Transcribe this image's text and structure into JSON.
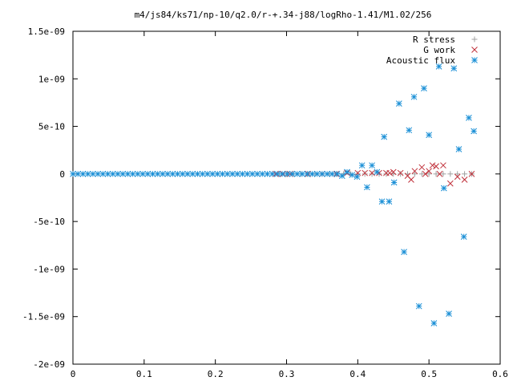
{
  "chart_data": {
    "type": "scatter",
    "title": "m4/js84/ks71/np-10/q2.0/r-+.34-j88/logRho-1.41/M1.02/256",
    "xlabel": "",
    "ylabel": "",
    "xlim": [
      0,
      0.6
    ],
    "ylim": [
      -2e-09,
      1.5e-09
    ],
    "x_ticks": [
      0,
      0.1,
      0.2,
      0.3,
      0.4,
      0.5,
      0.6
    ],
    "x_tick_labels": [
      "0",
      "0.1",
      "0.2",
      "0.3",
      "0.4",
      "0.5",
      "0.6"
    ],
    "y_ticks": [
      1.5e-09,
      1e-09,
      5e-10,
      0,
      -5e-10,
      -1e-09,
      -1.5e-09,
      -2e-09
    ],
    "y_tick_labels": [
      "1.5e-09",
      "1e-09",
      "5e-10",
      "0",
      "-5e-10",
      "-1e-09",
      "-1.5e-09",
      "-2e-09"
    ],
    "grid": false,
    "legend_position": "top-right",
    "series": [
      {
        "name": "R stress",
        "marker": "plus",
        "color": "#a0a0a0",
        "points": [
          [
            0.29,
            0
          ],
          [
            0.3,
            0
          ],
          [
            0.31,
            0
          ],
          [
            0.32,
            0
          ],
          [
            0.33,
            0
          ],
          [
            0.34,
            0
          ],
          [
            0.35,
            0
          ],
          [
            0.36,
            0
          ],
          [
            0.37,
            0
          ],
          [
            0.38,
            0
          ],
          [
            0.39,
            0
          ],
          [
            0.4,
            0
          ],
          [
            0.41,
            0
          ],
          [
            0.42,
            0
          ],
          [
            0.43,
            0
          ],
          [
            0.44,
            0
          ],
          [
            0.45,
            0
          ],
          [
            0.46,
            0
          ],
          [
            0.47,
            0
          ],
          [
            0.48,
            0
          ],
          [
            0.49,
            0
          ],
          [
            0.5,
            0
          ],
          [
            0.51,
            0
          ],
          [
            0.52,
            0
          ],
          [
            0.53,
            0
          ],
          [
            0.54,
            0
          ],
          [
            0.55,
            0
          ],
          [
            0.56,
            0
          ]
        ]
      },
      {
        "name": "G work",
        "marker": "cross",
        "color": "#c0303a",
        "points": [
          [
            0.285,
            0
          ],
          [
            0.295,
            0
          ],
          [
            0.305,
            0
          ],
          [
            0.33,
            0
          ],
          [
            0.35,
            0
          ],
          [
            0.37,
            0
          ],
          [
            0.385,
            1e-11
          ],
          [
            0.4,
            1e-11
          ],
          [
            0.41,
            1e-11
          ],
          [
            0.42,
            1e-11
          ],
          [
            0.43,
            1e-11
          ],
          [
            0.44,
            1e-11
          ],
          [
            0.445,
            1e-11
          ],
          [
            0.45,
            2e-11
          ],
          [
            0.46,
            1e-11
          ],
          [
            0.47,
            -2e-11
          ],
          [
            0.475,
            -6e-11
          ],
          [
            0.48,
            3e-11
          ],
          [
            0.49,
            7e-11
          ],
          [
            0.495,
            0
          ],
          [
            0.5,
            3e-11
          ],
          [
            0.505,
            9e-11
          ],
          [
            0.51,
            8e-11
          ],
          [
            0.515,
            0
          ],
          [
            0.52,
            9e-11
          ],
          [
            0.53,
            -1e-10
          ],
          [
            0.54,
            -3e-11
          ],
          [
            0.55,
            -6e-11
          ],
          [
            0.56,
            0
          ]
        ]
      },
      {
        "name": "Acoustic flux",
        "marker": "star",
        "color": "#1a8fd6",
        "points": [
          [
            0.0,
            0
          ],
          [
            0.007,
            0
          ],
          [
            0.014,
            0
          ],
          [
            0.021,
            0
          ],
          [
            0.028,
            0
          ],
          [
            0.035,
            0
          ],
          [
            0.042,
            0
          ],
          [
            0.049,
            0
          ],
          [
            0.056,
            0
          ],
          [
            0.063,
            0
          ],
          [
            0.07,
            0
          ],
          [
            0.077,
            0
          ],
          [
            0.084,
            0
          ],
          [
            0.091,
            0
          ],
          [
            0.098,
            0
          ],
          [
            0.105,
            0
          ],
          [
            0.112,
            0
          ],
          [
            0.119,
            0
          ],
          [
            0.126,
            0
          ],
          [
            0.133,
            0
          ],
          [
            0.14,
            0
          ],
          [
            0.147,
            0
          ],
          [
            0.154,
            0
          ],
          [
            0.161,
            0
          ],
          [
            0.168,
            0
          ],
          [
            0.175,
            0
          ],
          [
            0.182,
            0
          ],
          [
            0.189,
            0
          ],
          [
            0.196,
            0
          ],
          [
            0.203,
            0
          ],
          [
            0.21,
            0
          ],
          [
            0.217,
            0
          ],
          [
            0.224,
            0
          ],
          [
            0.231,
            0
          ],
          [
            0.238,
            0
          ],
          [
            0.245,
            0
          ],
          [
            0.252,
            0
          ],
          [
            0.259,
            0
          ],
          [
            0.266,
            0
          ],
          [
            0.273,
            0
          ],
          [
            0.28,
            0
          ],
          [
            0.287,
            0
          ],
          [
            0.294,
            0
          ],
          [
            0.301,
            0
          ],
          [
            0.308,
            0
          ],
          [
            0.315,
            0
          ],
          [
            0.322,
            0
          ],
          [
            0.329,
            0
          ],
          [
            0.336,
            0
          ],
          [
            0.343,
            0
          ],
          [
            0.35,
            0
          ],
          [
            0.357,
            0
          ],
          [
            0.364,
            0
          ],
          [
            0.371,
            0
          ],
          [
            0.378,
            -2e-11
          ],
          [
            0.385,
            2e-11
          ],
          [
            0.392,
            -1e-11
          ],
          [
            0.399,
            -3e-11
          ],
          [
            0.406,
            9e-11
          ],
          [
            0.413,
            -1.4e-10
          ],
          [
            0.42,
            9e-11
          ],
          [
            0.427,
            2e-11
          ],
          [
            0.434,
            -2.9e-10
          ],
          [
            0.437,
            3.9e-10
          ],
          [
            0.444,
            -2.9e-10
          ],
          [
            0.451,
            -9e-11
          ],
          [
            0.458,
            7.4e-10
          ],
          [
            0.465,
            -8.2e-10
          ],
          [
            0.472,
            4.6e-10
          ],
          [
            0.479,
            8.1e-10
          ],
          [
            0.486,
            -1.39e-09
          ],
          [
            0.493,
            9e-10
          ],
          [
            0.5,
            4.1e-10
          ],
          [
            0.507,
            -1.57e-09
          ],
          [
            0.514,
            1.13e-09
          ],
          [
            0.521,
            -1.5e-10
          ],
          [
            0.528,
            -1.47e-09
          ],
          [
            0.535,
            1.11e-09
          ],
          [
            0.542,
            2.6e-10
          ],
          [
            0.549,
            -6.6e-10
          ],
          [
            0.556,
            5.9e-10
          ],
          [
            0.563,
            4.5e-10
          ]
        ]
      }
    ]
  }
}
